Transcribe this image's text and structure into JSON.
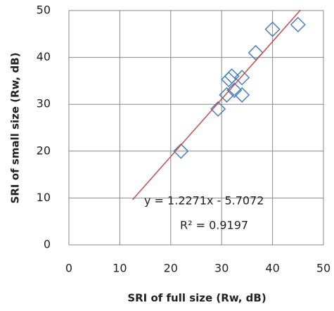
{
  "chart_data": {
    "type": "scatter",
    "x_label": "SRI of full size (Rw, dB)",
    "y_label": "SRI of small size (Rw, dB)",
    "series": [
      {
        "name": "SRI",
        "color": "#4a7ebb",
        "x": [
          22,
          29.3,
          31,
          31.4,
          32,
          32.5,
          34,
          34,
          36.7,
          40,
          45
        ],
        "values": [
          20,
          29,
          32,
          35.3,
          36,
          33,
          35.7,
          32,
          41,
          46,
          47
        ]
      }
    ],
    "trendline": {
      "label": "y = 1.2271x - 5.7072",
      "r2_label": "R² = 0.9197",
      "slope": 1.2271,
      "intercept": -5.7072,
      "x": [
        12.5,
        45.5
      ],
      "color": "#c0504d"
    },
    "xlim": [
      0,
      50
    ],
    "xticks": [
      0,
      10,
      20,
      30,
      40,
      50
    ],
    "ylim": [
      0,
      50
    ],
    "yticks": [
      0,
      10,
      20,
      30,
      40,
      50
    ],
    "grid": true
  }
}
